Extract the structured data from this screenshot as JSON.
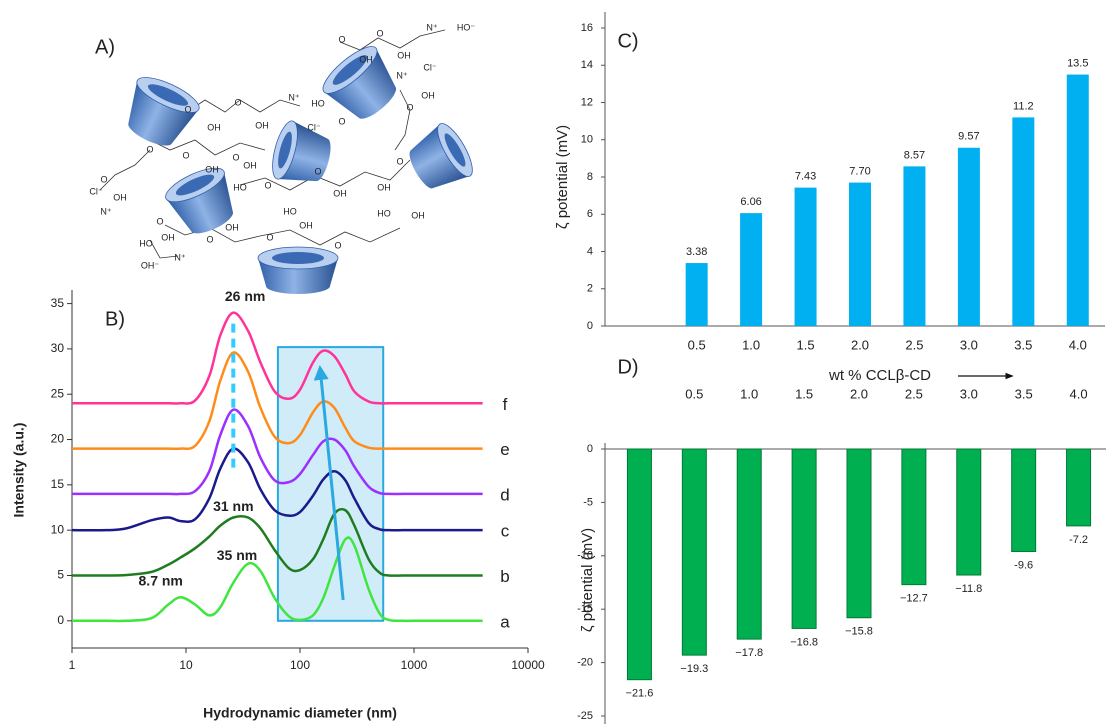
{
  "panel_a": {
    "label": "A)",
    "structure_labels": [
      "O",
      "OH",
      "O",
      "OH",
      "N⁺",
      "Cl⁻",
      "O",
      "OH",
      "O",
      "OH",
      "N⁺",
      "HO⁻",
      "N⁺",
      "Cl⁻",
      "OH",
      "HO",
      "O",
      "O",
      "O",
      "OH",
      "O",
      "OH",
      "O",
      "Cl⁻",
      "OH",
      "N⁺",
      "O",
      "HO",
      "O",
      "OH",
      "O",
      "OH",
      "O",
      "O",
      "HO",
      "OH",
      "OH⁻",
      "N⁺",
      "O",
      "OH",
      "O",
      "HO",
      "OH",
      "O",
      "HO",
      "OH"
    ]
  },
  "chart_data": [
    {
      "type": "line",
      "label": "B)",
      "x_label": "Hydrodynamic diameter (nm)",
      "y_label": "Intensity (a.u.)",
      "xscale": "log",
      "xlim": [
        1,
        10000
      ],
      "xticks": [
        1,
        10,
        100,
        1000,
        10000
      ],
      "ylim": [
        -3,
        36.5
      ],
      "yticks": [
        0,
        5,
        10,
        15,
        20,
        25,
        30,
        35
      ],
      "x": [
        1,
        2,
        3,
        5,
        7,
        9,
        12,
        16,
        20,
        26,
        35,
        45,
        60,
        80,
        100,
        130,
        160,
        200,
        250,
        300,
        400,
        500,
        600,
        800,
        1000,
        4000
      ],
      "series": [
        {
          "name": "a",
          "color": "#3ee63e",
          "values": [
            0,
            0,
            0,
            0.3,
            1.8,
            2.6,
            1.8,
            0.6,
            1.5,
            4.2,
            6.3,
            5.5,
            2.5,
            0.5,
            0.1,
            0.6,
            2.5,
            6,
            9,
            8.3,
            3.5,
            0.8,
            0.1,
            0,
            0,
            0
          ]
        },
        {
          "name": "b",
          "color": "#1e7d1e",
          "values": [
            5,
            5,
            5.05,
            5.4,
            6.2,
            7,
            8,
            9.3,
            10.5,
            11.4,
            11.4,
            10.2,
            7.8,
            5.8,
            5.6,
            6.8,
            9,
            11.8,
            12.2,
            10.5,
            6.8,
            5.3,
            5,
            5,
            5,
            5
          ]
        },
        {
          "name": "c",
          "color": "#1a1a8c",
          "values": [
            10,
            10,
            10.2,
            11.1,
            11.4,
            11,
            11.2,
            13.5,
            16.8,
            19,
            17.5,
            14.5,
            12.2,
            11.6,
            12,
            13.8,
            15.6,
            16.5,
            15.5,
            13.5,
            10.8,
            10.1,
            10,
            10,
            10,
            10
          ]
        },
        {
          "name": "d",
          "color": "#9b30ff",
          "values": [
            14,
            14,
            14,
            14,
            14,
            14,
            14.3,
            16.5,
            20.5,
            23.3,
            21.5,
            18,
            15.5,
            15.3,
            16.2,
            18.3,
            19.8,
            20,
            18.8,
            17,
            14.8,
            14.1,
            14,
            14,
            14,
            14
          ]
        },
        {
          "name": "e",
          "color": "#ff8c1a",
          "values": [
            19,
            19,
            19,
            19,
            19,
            19,
            19.3,
            22,
            26.5,
            29.6,
            27.5,
            23.5,
            20.3,
            19.6,
            20.5,
            23,
            24.2,
            23.5,
            21.3,
            19.8,
            19.1,
            19,
            19,
            19,
            19,
            19
          ]
        },
        {
          "name": "f",
          "color": "#ff3399",
          "values": [
            24,
            24,
            24,
            24,
            24,
            24,
            24.3,
            27,
            31.5,
            34,
            32,
            28.5,
            25.3,
            24.5,
            25.5,
            28.5,
            29.8,
            29.2,
            27.2,
            25.3,
            24.2,
            24,
            24,
            24,
            24,
            24
          ]
        }
      ],
      "highlight": {
        "x": [
          64,
          537
        ],
        "y": [
          0,
          30.2
        ],
        "color": "#29a9e0"
      },
      "reference_line": {
        "x": 26,
        "y": [
          16.9,
          33.4
        ],
        "color": "#33ccff"
      },
      "arrow": {
        "x": [
          239,
          150
        ],
        "y": [
          2.3,
          27.9
        ],
        "color": "#29a9e0"
      },
      "annotations": [
        {
          "text": "26 nm",
          "x": 33,
          "y": 35.7
        },
        {
          "text": "31 nm",
          "x": 26,
          "y": 12.5
        },
        {
          "text": "35 nm",
          "x": 28,
          "y": 7.1
        },
        {
          "text": "8.7 nm",
          "x": 6,
          "y": 4.3
        }
      ]
    },
    {
      "type": "bar",
      "label": "C)",
      "x_label": "wt % CCLβ-CD",
      "y_label": "ζ potential (mV)",
      "xaxis": "bottom",
      "color": "#00b0f0",
      "categories": [
        null,
        "0.5",
        "1.0",
        "1.5",
        "2.0",
        "2.5",
        "3.0",
        "3.5",
        "4.0"
      ],
      "values": [
        null,
        3.38,
        6.06,
        7.43,
        7.7,
        8.57,
        9.57,
        11.2,
        13.5
      ],
      "value_labels": [
        null,
        "3.38",
        "6.06",
        "7.43",
        "7.70",
        "8.57",
        "9.57",
        "11.2",
        "13.5"
      ],
      "ylim": [
        0,
        16
      ],
      "yticks": [
        0,
        2,
        4,
        6,
        8,
        10,
        12,
        14,
        16
      ]
    },
    {
      "type": "bar",
      "label": "D)",
      "y_label": "ζ potential (mV)",
      "xaxis": "top",
      "color": "#00b050",
      "categories": [
        null,
        "0.5",
        "1.0",
        "1.5",
        "2.0",
        "2.5",
        "3.0",
        "3.5",
        "4.0"
      ],
      "values": [
        -21.6,
        -19.3,
        -17.8,
        -16.8,
        -15.8,
        -12.7,
        -11.8,
        -9.6,
        -7.2
      ],
      "value_labels": [
        "−21.6",
        "−19.3",
        "−17.8",
        "−16.8",
        "−15.8",
        "−12.7",
        "−11.8",
        "-9.6",
        "-7.2"
      ],
      "ylim": [
        -25,
        0
      ],
      "yticks": [
        0,
        -5,
        -10,
        -15,
        -20,
        -25
      ]
    }
  ]
}
